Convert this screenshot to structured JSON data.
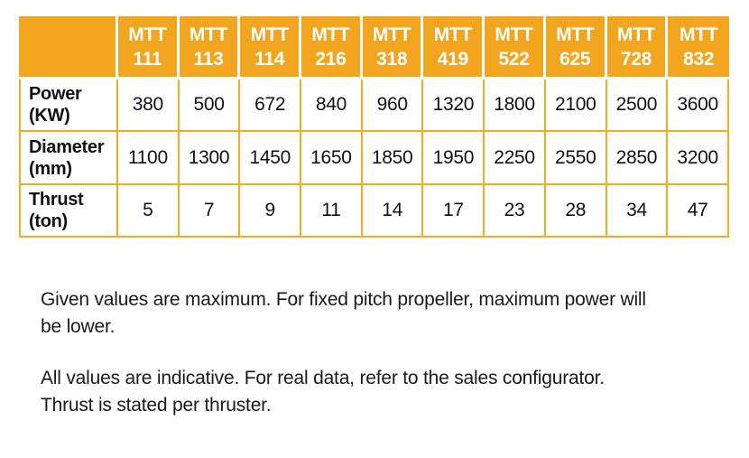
{
  "table": {
    "corner_label": "",
    "columns": [
      "MTT 111",
      "MTT 113",
      "MTT 114",
      "MTT 216",
      "MTT 318",
      "MTT 419",
      "MTT 522",
      "MTT 625",
      "MTT 728",
      "MTT 832"
    ],
    "rows": [
      {
        "label": "Power",
        "unit": "(KW)",
        "values": [
          "380",
          "500",
          "672",
          "840",
          "960",
          "1320",
          "1800",
          "2100",
          "2500",
          "3600"
        ]
      },
      {
        "label": "Diameter",
        "unit": "(mm)",
        "values": [
          "1100",
          "1300",
          "1450",
          "1650",
          "1850",
          "1950",
          "2250",
          "2550",
          "2850",
          "3200"
        ]
      },
      {
        "label": "Thrust",
        "unit": "(ton)",
        "values": [
          "5",
          "7",
          "9",
          "11",
          "14",
          "17",
          "23",
          "28",
          "34",
          "47"
        ]
      }
    ]
  },
  "notes": [
    {
      "lines": [
        "Given values are maximum. For fixed pitch propeller, maximum power will",
        "be lower."
      ]
    },
    {
      "lines": [
        "All values are indicative. For real data, refer to the sales configurator.",
        "Thrust is stated per thruster."
      ]
    }
  ],
  "colors": {
    "header_bg": "#F2A51F",
    "grid_border": "#F4AA24",
    "header_text": "#FFFFFF",
    "body_text": "#1A1A1A"
  }
}
